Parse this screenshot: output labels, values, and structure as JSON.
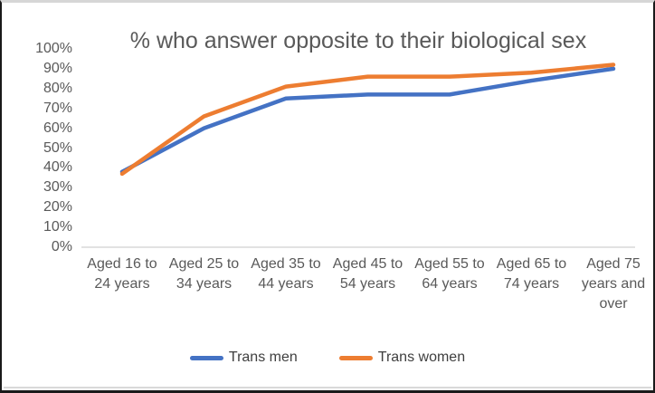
{
  "chart_data": {
    "type": "line",
    "title": "% who answer opposite to their biological sex",
    "categories": [
      "Aged 16 to 24 years",
      "Aged 25 to 34 years",
      "Aged 35 to 44 years",
      "Aged 45 to 54 years",
      "Aged 55 to 64 years",
      "Aged 65 to 74 years",
      "Aged 75 years and over"
    ],
    "series": [
      {
        "name": "Trans men",
        "color": "#4472C4",
        "values": [
          38,
          60,
          75,
          77,
          77,
          84,
          90
        ]
      },
      {
        "name": "Trans women",
        "color": "#ED7D31",
        "values": [
          37,
          66,
          81,
          86,
          86,
          88,
          92
        ]
      }
    ],
    "xlabel": "",
    "ylabel": "",
    "ylim": [
      0,
      100
    ],
    "y_tick_step": 10,
    "y_tick_labels": [
      "0%",
      "10%",
      "20%",
      "30%",
      "40%",
      "50%",
      "60%",
      "70%",
      "80%",
      "90%",
      "100%"
    ],
    "grid": false,
    "legend_position": "bottom",
    "axis_color": "#d9d9d9",
    "text_color": "#595959"
  }
}
